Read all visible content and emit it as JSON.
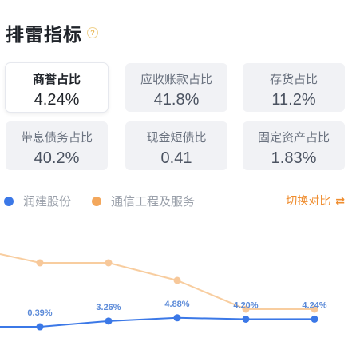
{
  "header": {
    "title": "排雷指标",
    "help_icon": "?"
  },
  "metrics": [
    {
      "label": "商誉占比",
      "value": "4.24%",
      "selected": true
    },
    {
      "label": "应收账款占比",
      "value": "41.8%"
    },
    {
      "label": "存货占比",
      "value": "11.2%"
    },
    {
      "label": "带息债务占比",
      "value": "40.2%"
    },
    {
      "label": "现金短债比",
      "value": "0.41"
    },
    {
      "label": "固定资产占比",
      "value": "1.83%"
    }
  ],
  "legend": {
    "series_a": {
      "name": "润建股份",
      "color": "#3b78e7"
    },
    "series_b": {
      "name": "通信工程及服务",
      "color": "#f3a75c"
    }
  },
  "switch": {
    "label": "切换对比",
    "icon": "swap-icon"
  },
  "chart_data": {
    "type": "line",
    "series": [
      {
        "name": "润建股份",
        "color": "#3b78e7",
        "values": [
          null,
          0.39,
          3.26,
          4.88,
          4.2,
          4.24
        ],
        "labels": [
          "",
          "0.39%",
          "3.26%",
          "4.88%",
          "4.20%",
          "4.24%"
        ]
      },
      {
        "name": "通信工程及服务",
        "color": "#f3a75c",
        "values": [
          null,
          null,
          null,
          null,
          null,
          null
        ]
      }
    ]
  }
}
